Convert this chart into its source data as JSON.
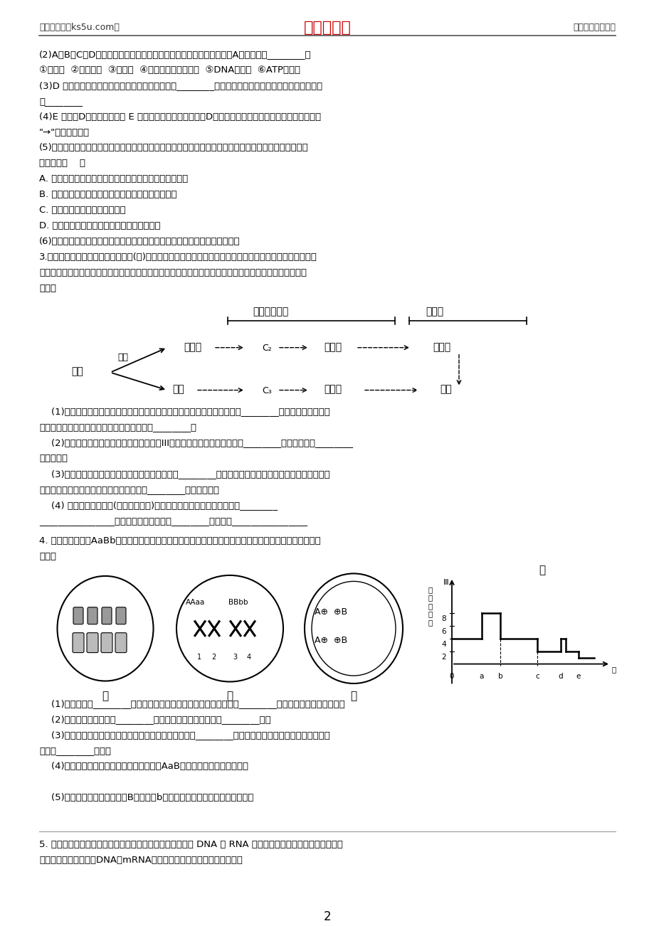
{
  "page_width": 9.2,
  "page_height": 13.02,
  "dpi": 100,
  "bg_color": "#ffffff",
  "header_left": "高考资源网（ks5u.com）",
  "header_center": "高考资源网",
  "header_right": "您身边的高考专家",
  "header_center_color": "#cc0000",
  "footer_text": "2",
  "content_lines": [
    "(2)A、B、C、D代表由细胞内合成的各种蛋白质。其中下列物质中属于A类物质的是________。",
    "①呼吸酶  ②粘连蛋白  ③胰岛素  ④线粒体膜的组成蛋白  ⑤DNA聚合酶  ⑥ATP合成酶",
    "(3)D 物质从合成并运输到细胞外的过程中一共穿过________层脂双层。能够大大增加细胞内膜面积的结",
    "是________",
    "(4)E 是合成D物质的原料，则 E 物质从细胞外进入细胞形成D物质并排出细胞外，需要经过的膜结构依次",
    "\"→\"和序号表示）",
    "(5)将酶、抗体、核酸等生物大分子或小分子药物用磷脂制成的微球体包裹后，更容易运输到患病部位的细",
    "这是因为（    ）",
    "A. 生物膜具有选择透性，能够允许对细胞有益的物质进入",
    "B. 磷脂双分子层是生物膜的基本骨架，且具有流动性",
    "C. 生物膜上的糖蛋白起识别作用",
    "D. 生物膜具有半透性，不允许大分子物质通过",
    "(6)请在图乙中绘出分泌蛋白合成和分泌后细胞中这三种生物膜的膜面积变化。",
    "3.大多数植物种子的贮藏物质以脂肪(油)为主，并储存在细胞的油体中。种子萌发时，脂肪水解生成脂肪酸和",
    "然后脂肪酸和甘油分别在多种酶的催化下形成葡萄糖，最后转变成蔗糖，并转运至胚轴供给胚生长和发育，",
    "所示。"
  ],
  "sub_questions_3": [
    "    (1)大多数植物种子以贮藏脂肪为主，这是因为与糖类相比，脂肪是更好的________物质，其原因之一是",
    "质量的脂肪彻底氧化分解释放出的能量比糖类________。",
    "    (2)为了观察植物种子中的脂肪，常用苏丹III染液对种子切片染色，然后在________下观察，可见________",
    "脂肪微粒。",
    "    (3)油料种子萌发时，细胞中催化脂肪水解的酶是________；脂肪储存和转变为蔗糖的过程中，先后依赖",
    "体、乙醛酸循环体、线粒体，是细胞器之间________的典型例子。",
    "    (4) 油料种子萌发初期(真叶长出之前)，干重先增加、后减少。其原因是________",
    "________________。真叶长出之后，干重________，原因是________________"
  ],
  "q4_text1": "4. 以下是基因型为AaBb的雌性高等动物细胞分裂图像及细胞分裂过程中染色体数目变化曲线，请回答下列",
  "q4_text2": "问题：",
  "q4_sub": [
    "    (1)甲细胞内有________个染色体组，分裂产生的子细胞的基因型是________。不具有同源染色体的细胞",
    "    (2)丙图所示细胞名称为________，其染色体变化对应丁图的________段。",
    "    (3)若用光学显微镜观察到图中细胞所示的染色体，需用________染色；若鉴定染色体的主要成分时，需",
    "试剂和________试剂。",
    "    (4)若乙图细胞分裂完成后形成了基因型为AaB的子细胞，其原因最可能是",
    "",
    "    (5)若丙图中一条染色体上的B基因变为b基因，则产生这种情况的原因可能是",
    ""
  ],
  "q5_text": "5. 放射性同位素自显影技术被用于研究细胞有丝分裂过程中 DNA 和 RNA 的变化。如图甲表示洋葱根尖细胞处",
  "q5_text2": "丝分裂各阶段细胞中核DNA和mRNA的含量变化。请据图回答有关问题。"
}
